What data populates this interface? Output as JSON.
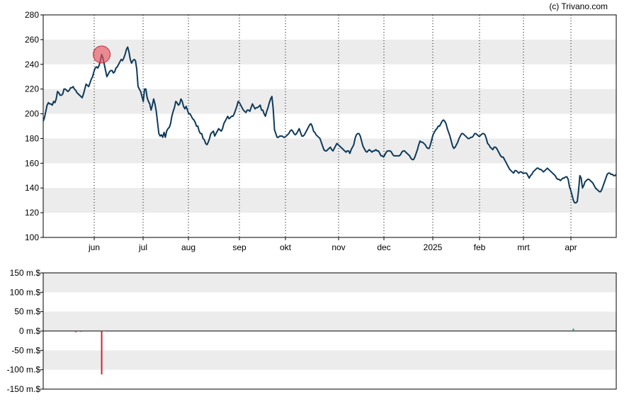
{
  "credit": "(c) Trivano.com",
  "chart_data": [
    {
      "type": "line",
      "title": "",
      "xlabel": "",
      "ylabel": "",
      "ylim": [
        100,
        280
      ],
      "yticks": [
        "280",
        "260",
        "240",
        "220",
        "200",
        "180",
        "160",
        "140",
        "120",
        "100"
      ],
      "xticks": [
        "jun",
        "jul",
        "aug",
        "sep",
        "okt",
        "nov",
        "dec",
        "2025",
        "feb",
        "mrt",
        "apr"
      ],
      "grid": "alternating horizontal bands, dotted vertical lines at month ticks",
      "series": [
        {
          "color": "#0e3a5a",
          "values": [
            194,
            197,
            202,
            207,
            209,
            208,
            208,
            207,
            210,
            209,
            212,
            218,
            217,
            215,
            215,
            216,
            220,
            220,
            219,
            218,
            219,
            221,
            221,
            222,
            220,
            219,
            217,
            216,
            215,
            214,
            213,
            216,
            220,
            224,
            223,
            222,
            225,
            228,
            230,
            234,
            237,
            238,
            237,
            239,
            243,
            248,
            245,
            240,
            235,
            230,
            232,
            234,
            235,
            235,
            233,
            234,
            237,
            238,
            240,
            242,
            244,
            243,
            245,
            248,
            252,
            254,
            250,
            244,
            241,
            243,
            244,
            243,
            236,
            222,
            220,
            218,
            214,
            210,
            220,
            220,
            213,
            210,
            208,
            203,
            207,
            212,
            208,
            202,
            193,
            184,
            182,
            183,
            181,
            185,
            181,
            186,
            188,
            189,
            192,
            198,
            202,
            205,
            210,
            209,
            207,
            208,
            212,
            210,
            206,
            204,
            206,
            203,
            200,
            200,
            198,
            196,
            195,
            193,
            190,
            190,
            186,
            184,
            184,
            180,
            179,
            176,
            175,
            177,
            180,
            184,
            185,
            186,
            182,
            184,
            186,
            188,
            187,
            186,
            188,
            192,
            194,
            196,
            198,
            196,
            197,
            198,
            198,
            200,
            203,
            206,
            210,
            209,
            207,
            205,
            203,
            202,
            201,
            203,
            203,
            202,
            205,
            208,
            206,
            204,
            205,
            205,
            206,
            207,
            203,
            203,
            200,
            198,
            202,
            205,
            209,
            212,
            214,
            204,
            187,
            184,
            181,
            181,
            182,
            182,
            182,
            181,
            181,
            182,
            183,
            184,
            186,
            187,
            186,
            184,
            183,
            184,
            186,
            188,
            185,
            182,
            182,
            183,
            185,
            187,
            189,
            191,
            192,
            190,
            186,
            185,
            183,
            182,
            181,
            180,
            177,
            174,
            171,
            170,
            170,
            171,
            172,
            173,
            171,
            170,
            172,
            174,
            176,
            175,
            174,
            173,
            172,
            171,
            170,
            169,
            170,
            170,
            168,
            171,
            173,
            175,
            180,
            183,
            184,
            184,
            182,
            178,
            174,
            172,
            170,
            169,
            170,
            171,
            170,
            169,
            170,
            170,
            171,
            170,
            170,
            168,
            166,
            166,
            165,
            167,
            169,
            170,
            170,
            170,
            169,
            167,
            166,
            166,
            166,
            166,
            166,
            167,
            169,
            170,
            170,
            169,
            168,
            167,
            166,
            164,
            163,
            163,
            165,
            168,
            171,
            175,
            178,
            177,
            177,
            176,
            175,
            173,
            172,
            172,
            175,
            179,
            183,
            185,
            187,
            188,
            190,
            190,
            192,
            194,
            195,
            194,
            192,
            188,
            185,
            182,
            178,
            174,
            172,
            173,
            175,
            177,
            180,
            182,
            184,
            184,
            183,
            182,
            181,
            180,
            180,
            181,
            181,
            182,
            184,
            184,
            183,
            182,
            182,
            183,
            184,
            184,
            183,
            180,
            176,
            175,
            173,
            172,
            171,
            173,
            173,
            172,
            170,
            168,
            166,
            165,
            165,
            163,
            161,
            159,
            157,
            155,
            154,
            153,
            152,
            154,
            154,
            153,
            152,
            153,
            153,
            152,
            152,
            152,
            152,
            150,
            148,
            150,
            151,
            153,
            154,
            155,
            156,
            156,
            155,
            155,
            154,
            153,
            154,
            155,
            156,
            155,
            154,
            153,
            152,
            151,
            150,
            148,
            147,
            147,
            146,
            147,
            148,
            148,
            149,
            149,
            147,
            141,
            138,
            134,
            130,
            128,
            128,
            129,
            138,
            150,
            148,
            140,
            142,
            145,
            146,
            147,
            147,
            146,
            145,
            144,
            142,
            140,
            139,
            138,
            137,
            137,
            139,
            142,
            145,
            148,
            151,
            152,
            152,
            151,
            151,
            150,
            150,
            151
          ]
        }
      ],
      "marker": {
        "index": 45,
        "value": 248,
        "color": "#e8545f"
      }
    },
    {
      "type": "bar",
      "title": "",
      "ylim": [
        -150,
        150
      ],
      "yticks": [
        "150 m.$",
        "100 m.$",
        "50 m.$",
        "0 m.$",
        "-50 m.$",
        "-100 m.$",
        "-150 m.$"
      ],
      "series": [
        {
          "name": "",
          "points": [
            {
              "index": 25,
              "value": -3,
              "color": "#cc2233"
            },
            {
              "index": 29,
              "value": -2,
              "color": "#cc2233"
            },
            {
              "index": 45,
              "value": -112,
              "color": "#cc2233"
            },
            {
              "index": 47,
              "value": -1,
              "color": "#cc2233"
            },
            {
              "index": 408,
              "value": 6,
              "color": "#2a9a5a"
            }
          ]
        }
      ]
    }
  ]
}
